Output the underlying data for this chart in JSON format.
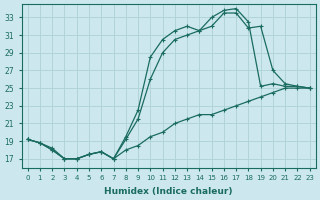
{
  "xlabel": "Humidex (Indice chaleur)",
  "bg_color": "#cce8ee",
  "grid_color": "#b0d4da",
  "line_color": "#1a6b60",
  "xlim": [
    -0.5,
    23.5
  ],
  "ylim": [
    16.0,
    34.5
  ],
  "xticks": [
    0,
    1,
    2,
    3,
    4,
    5,
    6,
    7,
    8,
    9,
    10,
    11,
    12,
    13,
    14,
    15,
    16,
    17,
    18,
    19,
    20,
    21,
    22,
    23
  ],
  "yticks": [
    17,
    19,
    21,
    23,
    25,
    27,
    29,
    31,
    33
  ],
  "line1_x": [
    0,
    1,
    2,
    3,
    4,
    5,
    6,
    7,
    8,
    9,
    10,
    11,
    12,
    13,
    14,
    15,
    16,
    17,
    18,
    19,
    20,
    21,
    22,
    23
  ],
  "line1_y": [
    19.2,
    18.8,
    18.2,
    17.0,
    17.0,
    17.5,
    17.8,
    17.0,
    19.2,
    21.5,
    26.0,
    29.0,
    30.5,
    31.0,
    31.5,
    32.0,
    33.5,
    33.5,
    31.8,
    32.0,
    27.0,
    25.5,
    25.2,
    25.0
  ],
  "line2_x": [
    0,
    1,
    2,
    3,
    4,
    5,
    6,
    7,
    8,
    9,
    10,
    11,
    12,
    13,
    14,
    15,
    16,
    17,
    18,
    19,
    20,
    21,
    22,
    23
  ],
  "line2_y": [
    19.2,
    18.8,
    18.0,
    17.0,
    17.0,
    17.5,
    17.8,
    17.0,
    19.5,
    22.5,
    28.5,
    30.5,
    31.5,
    32.0,
    31.5,
    33.0,
    33.8,
    34.0,
    32.5,
    25.2,
    25.5,
    25.2,
    25.2,
    25.0
  ],
  "line3_x": [
    0,
    1,
    2,
    3,
    4,
    5,
    6,
    7,
    8,
    9,
    10,
    11,
    12,
    13,
    14,
    15,
    16,
    17,
    18,
    19,
    20,
    21,
    22,
    23
  ],
  "line3_y": [
    19.2,
    18.8,
    18.0,
    17.0,
    17.0,
    17.5,
    17.8,
    17.0,
    18.0,
    18.5,
    19.5,
    20.0,
    21.0,
    21.5,
    22.0,
    22.0,
    22.5,
    23.0,
    23.5,
    24.0,
    24.5,
    25.0,
    25.0,
    25.0
  ]
}
